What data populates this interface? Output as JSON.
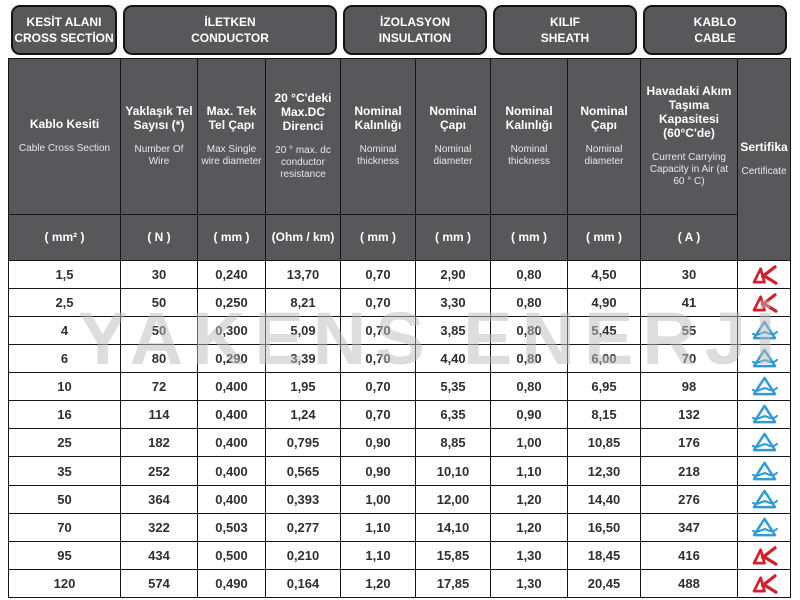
{
  "watermark": "YAKENS ENERJİ",
  "groups": [
    {
      "tr": "KESİT ALANI",
      "en": "CROSS SECTİON"
    },
    {
      "tr": "İLETKEN",
      "en": "CONDUCTOR"
    },
    {
      "tr": "İZOLASYON",
      "en": "INSULATION"
    },
    {
      "tr": "KILIF",
      "en": "SHEATH"
    },
    {
      "tr": "KABLO",
      "en": "CABLE"
    }
  ],
  "columns": [
    {
      "tr": "Kablo Kesiti",
      "en": "Cable Cross Section",
      "unit": "( mm² )"
    },
    {
      "tr": "Yaklaşık Tel Sayısı (*)",
      "en": "Number Of Wire",
      "unit": "( N )"
    },
    {
      "tr": "Max. Tek Tel Çapı",
      "en": "Max Single wire diameter",
      "unit": "( mm )"
    },
    {
      "tr": "20 °C'deki Max.DC Direnci",
      "en": "20 ° max. dc conductor resistance",
      "unit": "(Ohm / km)"
    },
    {
      "tr": "Nominal Kalınlığı",
      "en": "Nominal thickness",
      "unit": "( mm )"
    },
    {
      "tr": "Nominal Çapı",
      "en": "Nominal diameter",
      "unit": "( mm )"
    },
    {
      "tr": "Nominal Kalınlığı",
      "en": "Nominal thickness",
      "unit": "( mm )"
    },
    {
      "tr": "Nominal Çapı",
      "en": "Nominal diameter",
      "unit": "( mm )"
    },
    {
      "tr": "Havadaki Akım Taşıma Kapasitesi (60°C'de)",
      "en": "Current Carrying Capacity in Air (at 60 ° C)",
      "unit": "( A )"
    },
    {
      "tr": "Sertifika",
      "en": "Certificate",
      "unit": ""
    }
  ],
  "rows": [
    {
      "values": [
        "1,5",
        "30",
        "0,240",
        "13,70",
        "0,70",
        "2,90",
        "0,80",
        "4,50",
        "30"
      ],
      "cert": "red"
    },
    {
      "values": [
        "2,5",
        "50",
        "0,250",
        "8,21",
        "0,70",
        "3,30",
        "0,80",
        "4,90",
        "41"
      ],
      "cert": "red"
    },
    {
      "values": [
        "4",
        "50",
        "0,300",
        "5,09",
        "0,70",
        "3,85",
        "0,80",
        "5,45",
        "55"
      ],
      "cert": "blue"
    },
    {
      "values": [
        "6",
        "80",
        "0,290",
        "3,39",
        "0,70",
        "4,40",
        "0,80",
        "6,00",
        "70"
      ],
      "cert": "blue"
    },
    {
      "values": [
        "10",
        "72",
        "0,400",
        "1,95",
        "0,70",
        "5,35",
        "0,80",
        "6,95",
        "98"
      ],
      "cert": "blue"
    },
    {
      "values": [
        "16",
        "114",
        "0,400",
        "1,24",
        "0,70",
        "6,35",
        "0,90",
        "8,15",
        "132"
      ],
      "cert": "blue"
    },
    {
      "values": [
        "25",
        "182",
        "0,400",
        "0,795",
        "0,90",
        "8,85",
        "1,00",
        "10,85",
        "176"
      ],
      "cert": "blue"
    },
    {
      "values": [
        "35",
        "252",
        "0,400",
        "0,565",
        "0,90",
        "10,10",
        "1,10",
        "12,30",
        "218"
      ],
      "cert": "blue"
    },
    {
      "values": [
        "50",
        "364",
        "0,400",
        "0,393",
        "1,00",
        "12,00",
        "1,20",
        "14,40",
        "276"
      ],
      "cert": "blue"
    },
    {
      "values": [
        "70",
        "322",
        "0,503",
        "0,277",
        "1,10",
        "14,10",
        "1,20",
        "16,50",
        "347"
      ],
      "cert": "blue"
    },
    {
      "values": [
        "95",
        "434",
        "0,500",
        "0,210",
        "1,10",
        "15,85",
        "1,30",
        "18,45",
        "416"
      ],
      "cert": "red"
    },
    {
      "values": [
        "120",
        "574",
        "0,490",
        "0,164",
        "1,20",
        "17,85",
        "1,30",
        "20,45",
        "488"
      ],
      "cert": "red"
    }
  ],
  "colors": {
    "header_bg": "#58585a",
    "border": "#141414",
    "cert_red": "#d1202a",
    "cert_blue": "#2e9bd6",
    "data_text": "#2f2f2f"
  }
}
